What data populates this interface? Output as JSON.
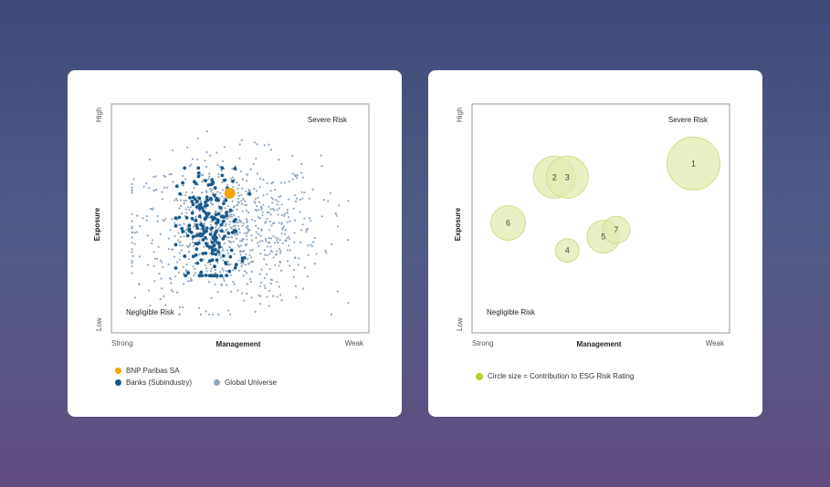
{
  "colors": {
    "company": "#f5a300",
    "subindustry": "#1a5a8c",
    "universe": "#8fa7c2",
    "bubble_fill": "#e2ebb0",
    "bubble_stroke": "#d2dd8c",
    "bubble_legend": "#b8cc2e"
  },
  "left_chart": {
    "chart_data": {
      "type": "scatter",
      "xlabel": "Management",
      "ylabel": "Exposure",
      "x_tick_labels": [
        "Strong",
        "Weak"
      ],
      "y_tick_labels": [
        "Low",
        "High"
      ],
      "xlim": [
        0,
        100
      ],
      "ylim": [
        0,
        100
      ],
      "annotations": {
        "top_right": "Severe Risk",
        "bottom_left": "Negligible Risk"
      },
      "series": [
        {
          "name": "Global Universe",
          "color": "#8fa7c2",
          "distribution": "scattered",
          "center": [
            45,
            45
          ],
          "spread": [
            18,
            16
          ],
          "count": 850
        },
        {
          "name": "Banks (Subindustry)",
          "color": "#1a5a8c",
          "distribution": "clustered",
          "center": [
            38,
            45
          ],
          "spread": [
            6,
            13
          ],
          "count": 190
        },
        {
          "name": "BNP Paribas SA",
          "color": "#f5a300",
          "points": [
            {
              "x": 46,
              "y": 61
            }
          ]
        }
      ]
    },
    "legend": {
      "company": "BNP Paribas SA",
      "subindustry": "Banks (Subindustry)",
      "universe": "Global Universe"
    }
  },
  "right_chart": {
    "chart_data": {
      "type": "scatter",
      "xlabel": "Management",
      "ylabel": "Exposure",
      "x_tick_labels": [
        "Strong",
        "Weak"
      ],
      "y_tick_labels": [
        "Low",
        "High"
      ],
      "xlim": [
        0,
        100
      ],
      "ylim": [
        0,
        100
      ],
      "annotations": {
        "top_right": "Severe Risk",
        "bottom_left": "Negligible Risk"
      },
      "bubbles": [
        {
          "label": "1",
          "x": 86,
          "y": 74,
          "size": 29
        },
        {
          "label": "2",
          "x": 32,
          "y": 68,
          "size": 23
        },
        {
          "label": "3",
          "x": 37,
          "y": 68,
          "size": 23
        },
        {
          "label": "4",
          "x": 37,
          "y": 36,
          "size": 13
        },
        {
          "label": "5",
          "x": 51,
          "y": 42,
          "size": 18
        },
        {
          "label": "6",
          "x": 14,
          "y": 48,
          "size": 19
        },
        {
          "label": "7",
          "x": 56,
          "y": 45,
          "size": 15
        }
      ]
    },
    "legend": {
      "bubble": "Circle size = Contribution to ESG Risk Rating"
    }
  }
}
